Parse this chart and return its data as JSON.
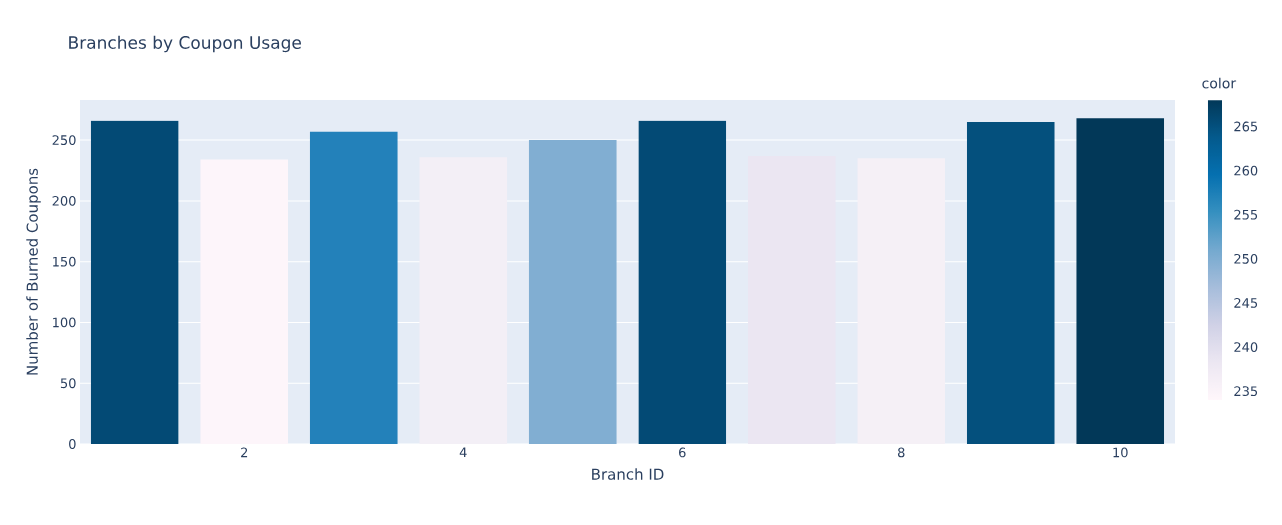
{
  "chart_data": {
    "type": "bar",
    "title": "Branches by Coupon Usage",
    "xlabel": "Branch ID",
    "ylabel": "Number of Burned Coupons",
    "x": [
      1,
      2,
      3,
      4,
      5,
      6,
      7,
      8,
      9,
      10
    ],
    "values": [
      266,
      234,
      257,
      236,
      250,
      266,
      237,
      235,
      265,
      268
    ],
    "colors": [
      "#034a75",
      "#fdf5fa",
      "#2381ba",
      "#f3eff6",
      "#81aed2",
      "#034a75",
      "#ebe6f2",
      "#f5f0f6",
      "#04507d",
      "#023858"
    ],
    "xlim": [
      0.5,
      10.5
    ],
    "xticks": [
      2,
      4,
      6,
      8,
      10
    ],
    "ylim": [
      0,
      283
    ],
    "yticks": [
      0,
      50,
      100,
      150,
      200,
      250
    ],
    "clabel": "color",
    "clim": [
      234,
      268
    ],
    "cticks": [
      235,
      240,
      245,
      250,
      255,
      260,
      265
    ],
    "grid": "y"
  }
}
